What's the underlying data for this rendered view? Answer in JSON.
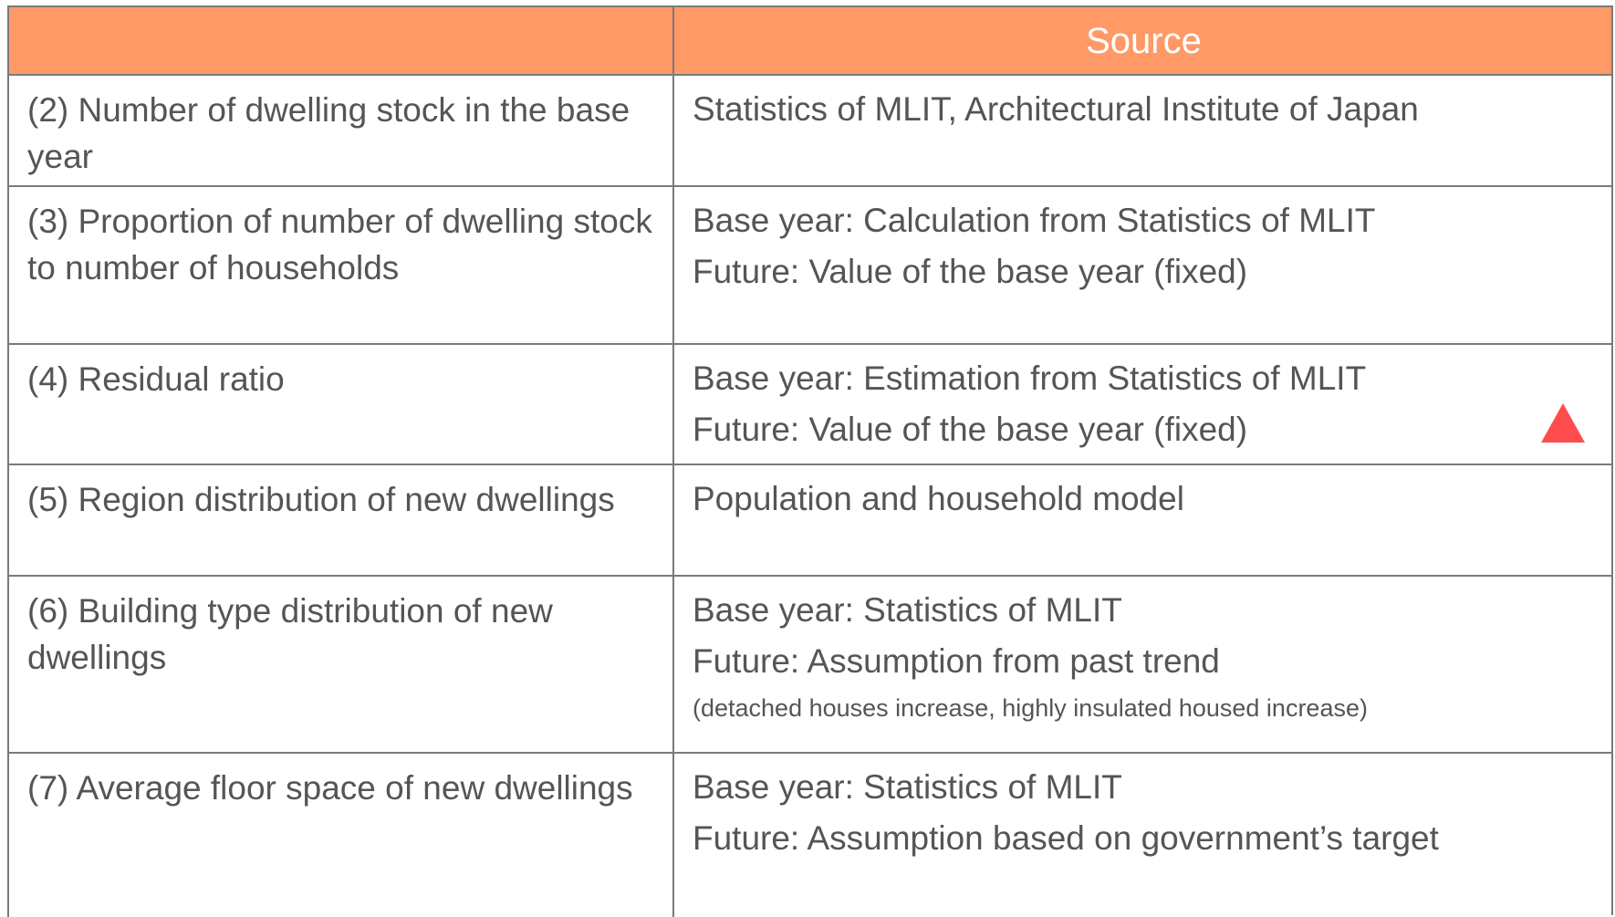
{
  "header": {
    "source": "Source"
  },
  "rows": [
    {
      "label": "(2) Number of dwelling stock in the base year",
      "source": [
        "Statistics of MLIT, Architectural Institute of Japan"
      ]
    },
    {
      "label": "(3) Proportion of number of dwelling stock to number of households",
      "source": [
        "Base year: Calculation from Statistics of MLIT",
        "Future: Value of the base year (fixed)"
      ]
    },
    {
      "label": "(4) Residual ratio",
      "source": [
        "Base year: Estimation from Statistics of MLIT",
        "Future: Value of the base year (fixed)"
      ]
    },
    {
      "label": "(5) Region distribution of new dwellings",
      "source": [
        "Population and household model"
      ]
    },
    {
      "label": "(6) Building type distribution of new dwellings",
      "source": [
        "Base year: Statistics of MLIT",
        "Future: Assumption from past trend"
      ],
      "note": "(detached houses increase, highly insulated housed increase)"
    },
    {
      "label": "(7) Average floor space of new dwellings",
      "source": [
        "Base year: Statistics of MLIT",
        "Future: Assumption based on government’s target"
      ]
    }
  ]
}
